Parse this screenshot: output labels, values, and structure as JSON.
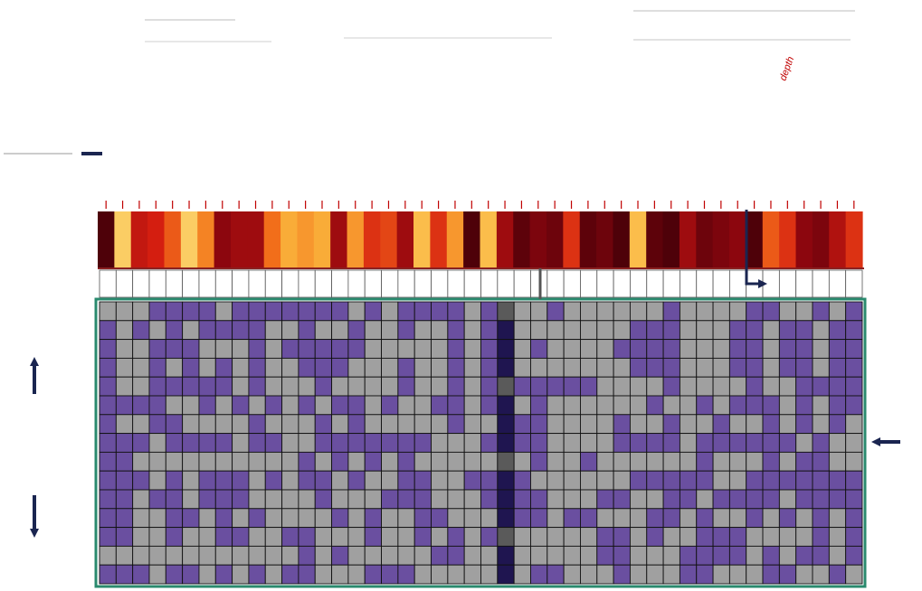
{
  "figure": {
    "top_label_right": "depth",
    "colors": {
      "border": "#2a8a6e",
      "present": "#6a4fa0",
      "absent": "#a0a0a0",
      "highlight_present": "#1f1550",
      "highlight_absent": "#5a5a5a",
      "arrow": "#1a2550",
      "label_red": "#c00000"
    },
    "icons": [
      "arrow-left-icon",
      "arrow-up-icon",
      "arrow-down-icon",
      "arrow-bent-right-icon",
      "arrow-left-large-icon"
    ]
  },
  "chart_data": {
    "type": "heatmap",
    "header_heat_levels": [
      0.05,
      0.9,
      0.4,
      0.45,
      0.6,
      0.9,
      0.7,
      0.25,
      0.3,
      0.3,
      0.65,
      0.8,
      0.75,
      0.8,
      0.3,
      0.75,
      0.5,
      0.55,
      0.3,
      0.85,
      0.5,
      0.75,
      0.05,
      0.85,
      0.3,
      0.1,
      0.2,
      0.15,
      0.5,
      0.1,
      0.15,
      0.05,
      0.85,
      0.1,
      0.05,
      0.3,
      0.15,
      0.2,
      0.25,
      0.05,
      0.6,
      0.5,
      0.25,
      0.2,
      0.35,
      0.5
    ],
    "highlight_column": 24,
    "matrix": [
      "0001111011111110101111011001000000100001100101",
      "1010101111001001001001011000000011100011011011",
      "1001110001011111000001011010000111100011011011",
      "1001010101001110001001011000000011100011011011",
      "1001111101000100001001011111110000100001001111",
      "1111001010101011010011011010000001001011101011",
      "1001100001000101000001000110000100100100101010",
      "1110111101100111111100011110000111101111110100",
      "1100000000001010101000001010010000001000101100",
      "1110101110101101001100111100000011111001111111",
      "1101101110000100011100011110001100110111101111",
      "1100110101000010100110001110110001101001010101",
      "1100100110011000100101011000001101001110000101",
      "0000000000001010000011000000001100011110101101",
      "1110110101011000111000000011000100011000110010"
    ]
  }
}
